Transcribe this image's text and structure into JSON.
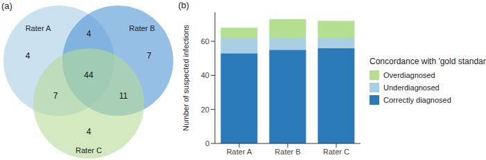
{
  "chart_data": [
    {
      "type": "venn",
      "label": "(a)",
      "sets": [
        {
          "name": "Rater A",
          "color": "#a6cde6"
        },
        {
          "name": "Rater B",
          "color": "#4f94d4"
        },
        {
          "name": "Rater C",
          "color": "#b5dc98"
        }
      ],
      "regions": [
        {
          "sets": [
            "Rater A"
          ],
          "value": 4
        },
        {
          "sets": [
            "Rater B"
          ],
          "value": 7
        },
        {
          "sets": [
            "Rater C"
          ],
          "value": 4
        },
        {
          "sets": [
            "Rater A",
            "Rater B"
          ],
          "value": 4
        },
        {
          "sets": [
            "Rater A",
            "Rater C"
          ],
          "value": 7
        },
        {
          "sets": [
            "Rater B",
            "Rater C"
          ],
          "value": 11
        },
        {
          "sets": [
            "Rater A",
            "Rater B",
            "Rater C"
          ],
          "value": 44
        }
      ]
    },
    {
      "type": "bar",
      "label": "(b)",
      "stacked": true,
      "categories": [
        "Rater A",
        "Rater B",
        "Rater C"
      ],
      "y_label": "Number of suspected infections",
      "legend_title": "Concordance with 'gold standard'",
      "legend": "right",
      "grid": false,
      "series": [
        {
          "name": "Correctly diagnosed",
          "color": "#2a79b8",
          "values": [
            53,
            55,
            56
          ]
        },
        {
          "name": "Underdiagnosed",
          "color": "#a9cfe3",
          "values": [
            9,
            7,
            6
          ]
        },
        {
          "name": "Overdiagnosed",
          "color": "#b4df8f",
          "values": [
            6,
            11,
            10
          ]
        }
      ],
      "ylim": [
        0,
        77
      ],
      "yticks": [
        0,
        20,
        40,
        60
      ]
    }
  ]
}
